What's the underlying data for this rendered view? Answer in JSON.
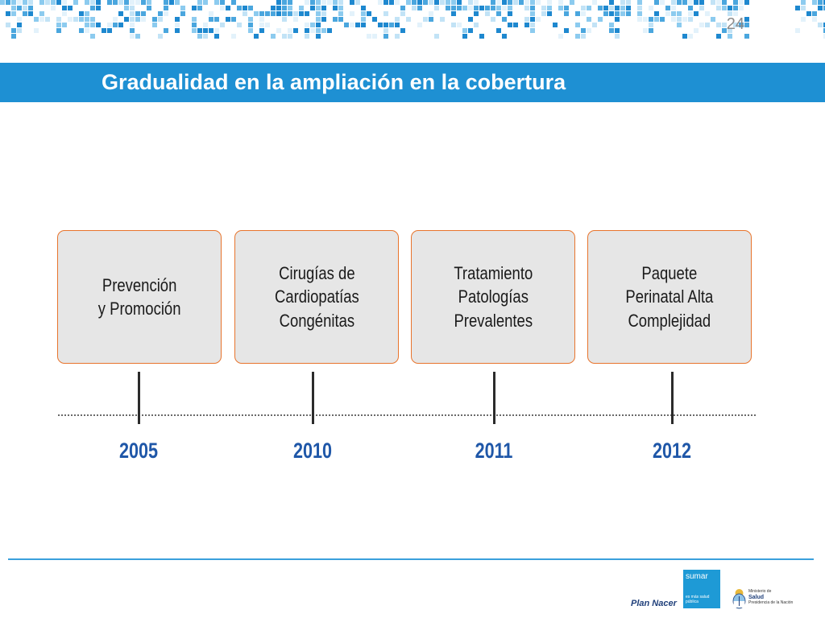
{
  "slide_number": "24",
  "title": "Gradualidad en la ampliación en la cobertura",
  "timeline": [
    {
      "year": "2005",
      "label": "Prevención\n y Promoción"
    },
    {
      "year": "2010",
      "label": "Cirugías de\nCardiopatías\nCongénitas"
    },
    {
      "year": "2011",
      "label": "Tratamiento\nPatologías\nPrevalentes"
    },
    {
      "year": "2012",
      "label": "Paquete\nPerinatal Alta\nComplejidad"
    }
  ],
  "footer": {
    "plan_nacer": "Plan Nacer",
    "sumar_title": "sumar",
    "sumar_subtitle": "es más salud pública",
    "ministerio_line1": "Ministerio de",
    "ministerio_line2": "Salud",
    "ministerio_line3": "Presidencia de la Nación"
  },
  "colors": {
    "title_bar": "#1e90d3",
    "box_border": "#e8742c",
    "box_fill": "#e6e6e6",
    "year_text": "#1f57a8"
  },
  "icons": [
    "pixel-pattern-header",
    "argentina-seal-icon"
  ]
}
